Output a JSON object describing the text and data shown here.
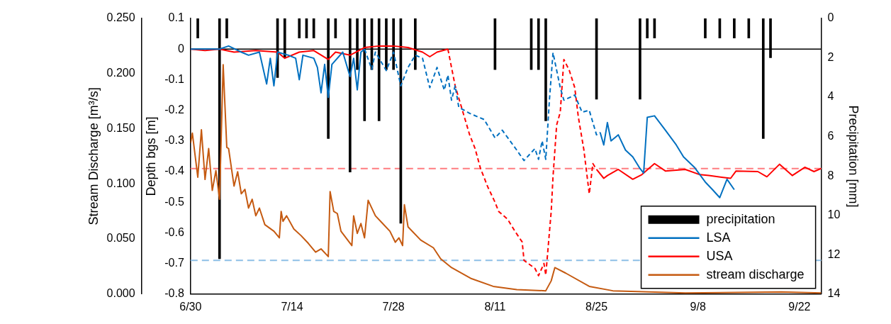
{
  "chart_data": {
    "type": "line",
    "ylabel": "Depth bgs [m]",
    "y2label": "Precipitation [mm]",
    "y3label": "Stream Discharge [m³/s]",
    "xlim": [
      "--06-30",
      "--09-25"
    ],
    "xticks": [
      {
        "value": "--06-30",
        "label": "6/30"
      },
      {
        "value": "--07-14",
        "label": "7/14"
      },
      {
        "value": "--07-28",
        "label": "7/28"
      },
      {
        "value": "--08-11",
        "label": "8/11"
      },
      {
        "value": "--08-25",
        "label": "8/25"
      },
      {
        "value": "--09-08",
        "label": "9/8"
      },
      {
        "value": "--09-22",
        "label": "9/22"
      }
    ],
    "ylim": [
      -0.8,
      0.1
    ],
    "yticks": [
      -0.8,
      -0.7,
      -0.6,
      -0.5,
      -0.4,
      -0.3,
      -0.2,
      -0.1,
      0,
      0.1
    ],
    "y2lim": [
      14,
      0
    ],
    "y2ticks": [
      0,
      2,
      4,
      6,
      8,
      10,
      12,
      14
    ],
    "y3lim": [
      0,
      0.25
    ],
    "y3ticks": [
      {
        "value": 0,
        "label": "0.000"
      },
      {
        "value": 0.05,
        "label": "0.050"
      },
      {
        "value": 0.1,
        "label": "0.100"
      },
      {
        "value": 0.15,
        "label": "0.150"
      },
      {
        "value": 0.2,
        "label": "0.200"
      },
      {
        "value": 0.25,
        "label": "0.250"
      }
    ],
    "legend": "bottom right",
    "marker": "none",
    "ref_lines": [
      {
        "axis": "y",
        "value": 0,
        "color": "#000000",
        "line_style": "solid"
      },
      {
        "axis": "y",
        "value": -0.39,
        "color": "#ff7c80",
        "line_style": "dashed"
      },
      {
        "axis": "y",
        "value": -0.69,
        "color": "#8dbfe6",
        "line_style": "dashed"
      }
    ],
    "series": [
      {
        "name": "precipitation",
        "type": "bar",
        "axis": "y2",
        "color": "#000000",
        "x": [
          "--07-01",
          "--07-04",
          "--07-05",
          "--07-12",
          "--07-13",
          "--07-15",
          "--07-16",
          "--07-17",
          "--07-19",
          "--07-20",
          "--07-22",
          "--07-23",
          "--07-24",
          "--07-25",
          "--07-26",
          "--07-27",
          "--07-28",
          "--07-29",
          "--07-31",
          "--08-11",
          "--08-16",
          "--08-17",
          "--08-18",
          "--08-25",
          "--08-31",
          "--09-01",
          "--09-02",
          "--09-09",
          "--09-11",
          "--09-13",
          "--09-15",
          "--09-17",
          "--09-18"
        ],
        "values": [
          1.0,
          12.2,
          1.0,
          3.0,
          2.0,
          1.0,
          1.0,
          1.0,
          6.1,
          1.0,
          7.8,
          2.6,
          5.2,
          2.6,
          5.2,
          2.6,
          2.6,
          10.4,
          2.6,
          2.6,
          2.6,
          2.6,
          5.2,
          4.1,
          4.1,
          1.0,
          1.0,
          1.0,
          1.0,
          1.0,
          1.0,
          6.1,
          2.0
        ]
      },
      {
        "name": "LSA",
        "color": "#0070c0",
        "line_style": "solid",
        "x": [
          "--06-30",
          "--07-02",
          "--07-04",
          "--07-05T06:00",
          "--07-07",
          "--07-08",
          "--07-09T12:00",
          "--07-10T12:00",
          "--07-11",
          "--07-11T12:00",
          "--07-12",
          "--07-13T12:00",
          "--07-14T12:00",
          "--07-15",
          "--07-15T12:00",
          "--07-17",
          "--07-17T12:00",
          "--07-18",
          "--07-18T12:00",
          "--07-19",
          "--07-19T12:00",
          "--07-21",
          "--07-22",
          "--07-22T12:00",
          "--07-23",
          "--07-23T12:00",
          "--07-24",
          "--08-09",
          "--08-25T12:00",
          "--08-26",
          "--08-26T12:00",
          "--08-27",
          "--08-28",
          "--08-29",
          "--08-30",
          "--08-31",
          "--08-31T12:00",
          "--09-01",
          "--09-02",
          "--09-03T12:00",
          "--09-05",
          "--09-06",
          "--09-07T12:00",
          "--09-09",
          "--09-10",
          "--09-11",
          "--09-12",
          "--09-13"
        ],
        "values": [
          0,
          0,
          0,
          0.01,
          -0.01,
          -0.02,
          -0.01,
          -0.114,
          -0.03,
          -0.12,
          -0.01,
          -0.02,
          -0.03,
          -0.1,
          -0.02,
          -0.03,
          -0.06,
          -0.143,
          -0.05,
          -0.158,
          -0.05,
          -0.01,
          -0.09,
          -0.03,
          -0.133,
          -0.01,
          0,
          null,
          -0.272,
          -0.313,
          -0.24,
          -0.3,
          -0.28,
          -0.33,
          -0.352,
          -0.39,
          -0.405,
          -0.223,
          -0.218,
          -0.265,
          -0.313,
          -0.352,
          -0.386,
          -0.434,
          -0.459,
          -0.485,
          -0.425,
          -0.459
        ]
      },
      {
        "color": "#0070c0",
        "line_style": "dashed",
        "x": [
          "--07-24",
          "--07-25",
          "--07-25T12:00",
          "--07-27",
          "--07-28",
          "--07-29",
          "--07-30",
          "--07-31",
          "--08-01",
          "--08-02",
          "--08-03",
          "--08-04",
          "--08-04T12:00",
          "--08-05",
          "--08-05T12:00",
          "--08-06",
          "--08-07T12:00",
          "--08-09T12:00",
          "--08-11",
          "--08-12",
          "--08-14",
          "--08-15",
          "--08-16T12:00",
          "--08-17",
          "--08-17T12:00",
          "--08-18",
          "--08-18T12:00",
          "--08-19",
          "--08-20",
          "--08-20T12:00",
          "--08-22",
          "--08-23",
          "--08-24",
          "--08-25",
          "--08-25T12:00"
        ],
        "values": [
          0,
          -0.066,
          -0.01,
          -0.07,
          -0.01,
          -0.12,
          -0.06,
          -0.02,
          -0.03,
          -0.126,
          -0.06,
          -0.134,
          -0.085,
          -0.167,
          -0.12,
          -0.19,
          -0.21,
          -0.23,
          -0.29,
          -0.265,
          -0.33,
          -0.364,
          -0.325,
          -0.36,
          -0.3,
          -0.36,
          -0.167,
          -0.012,
          -0.126,
          -0.167,
          -0.15,
          -0.206,
          -0.2,
          -0.28,
          -0.272
        ]
      },
      {
        "name": "USA",
        "color": "#ff0000",
        "line_style": "solid",
        "x": [
          "--06-30",
          "--07-02",
          "--07-04",
          "--07-06",
          "--07-09",
          "--07-12",
          "--07-13",
          "--07-15",
          "--07-17",
          "--07-19",
          "--07-20",
          "--07-22",
          "--07-24",
          "--07-26",
          "--07-28",
          "--07-30",
          "--08-01",
          "--08-02",
          "--08-03",
          "--08-04T12:00",
          "--08-15",
          "--08-25",
          "--08-26",
          "--08-26T12:00",
          "--08-28",
          "--08-30",
          "--08-31T06:00",
          "--09-02",
          "--09-03T12:00",
          "--09-06T06:00",
          "--09-08T06:00",
          "--09-09T12:00",
          "--09-12T12:00",
          "--09-13T06:00",
          "--09-16T06:00",
          "--09-17T12:00",
          "--09-19T06:00",
          "--09-21",
          "--09-22T18:00",
          "--09-24",
          "--09-25"
        ],
        "values": [
          0,
          -0.005,
          0,
          -0.01,
          -0.005,
          -0.01,
          -0.03,
          -0.01,
          -0.005,
          -0.034,
          -0.01,
          -0.02,
          0.005,
          0.01,
          0.01,
          0.005,
          -0.01,
          -0.025,
          -0.01,
          0,
          null,
          -0.393,
          -0.422,
          -0.413,
          -0.393,
          -0.425,
          -0.41,
          -0.374,
          -0.398,
          -0.393,
          -0.41,
          -0.413,
          -0.422,
          -0.398,
          -0.4,
          -0.417,
          -0.376,
          -0.413,
          -0.386,
          -0.4,
          -0.39
        ]
      },
      {
        "color": "#ff0000",
        "line_style": "dashed",
        "x": [
          "--08-04T12:00",
          "--08-04T18:00",
          "--08-05T12:00",
          "--08-06T12:00",
          "--08-07T12:00",
          "--08-08T06:00",
          "--08-09",
          "--08-10",
          "--08-11",
          "--08-11T12:00",
          "--08-12T18:00",
          "--08-13T18:00",
          "--08-14T18:00",
          "--08-15",
          "--08-16T12:00",
          "--08-17",
          "--08-17T18:00",
          "--08-18",
          "--08-18T18:00",
          "--08-19",
          "--08-19T12:00",
          "--08-20",
          "--08-20T12:00",
          "--08-21T06:00",
          "--08-22",
          "--08-22T12:00",
          "--08-23T06:00",
          "--08-24",
          "--08-24T12:00",
          "--08-25"
        ],
        "values": [
          0,
          -0.03,
          -0.12,
          -0.2,
          -0.28,
          -0.325,
          -0.39,
          -0.45,
          -0.5,
          -0.53,
          -0.556,
          -0.595,
          -0.63,
          -0.69,
          -0.716,
          -0.74,
          -0.7,
          -0.738,
          -0.53,
          -0.417,
          -0.248,
          -0.206,
          -0.034,
          -0.07,
          -0.126,
          -0.223,
          -0.328,
          -0.473,
          -0.374,
          -0.393
        ]
      },
      {
        "name": "stream discharge",
        "color": "#c55a11",
        "line_style": "solid",
        "axis": "y3",
        "x": [
          "--06-30",
          "--06-30T06:00",
          "--07-01",
          "--07-01T12:00",
          "--07-02",
          "--07-02T12:00",
          "--07-03",
          "--07-03T12:00",
          "--07-04",
          "--07-04T12:00",
          "--07-05",
          "--07-05T06:00",
          "--07-06",
          "--07-06T12:00",
          "--07-07",
          "--07-07T12:00",
          "--07-08",
          "--07-08T12:00",
          "--07-09",
          "--07-09T12:00",
          "--07-10T06:00",
          "--07-11T12:00",
          "--07-12T06:00",
          "--07-12T12:00",
          "--07-12T18:00",
          "--07-13T06:00",
          "--07-14T06:00",
          "--07-15T06:00",
          "--07-16T06:00",
          "--07-17T06:00",
          "--07-18",
          "--07-19",
          "--07-19T06:00",
          "--07-19T18:00",
          "--07-20T06:00",
          "--07-20T18:00",
          "--07-22T06:00",
          "--07-22T12:00",
          "--07-23",
          "--07-23T12:00",
          "--07-24",
          "--07-24T12:00",
          "--07-25T12:00",
          "--07-26T12:00",
          "--07-27T12:00",
          "--07-28T06:00",
          "--07-28T18:00",
          "--07-29T06:00",
          "--07-29T12:00",
          "--07-30",
          "--07-31T18:00",
          "--08-02T12:00",
          "--08-03T12:00",
          "--08-05",
          "--08-07T18:00",
          "--08-10T18:00",
          "--08-14",
          "--08-18",
          "--08-18T18:00",
          "--08-19T06:00",
          "--08-20T18:00",
          "--08-24",
          "--08-27T06:00",
          "--09-01T06:00",
          "--09-06T06:00",
          "--09-19T12:00",
          "--09-25"
        ],
        "values": [
          0.137,
          0.146,
          0.106,
          0.149,
          0.104,
          0.132,
          0.094,
          0.112,
          0.086,
          0.208,
          0.133,
          0.132,
          0.098,
          0.111,
          0.091,
          0.095,
          0.078,
          0.086,
          0.071,
          0.078,
          0.063,
          0.057,
          0.051,
          0.075,
          0.066,
          0.071,
          0.059,
          0.053,
          0.046,
          0.038,
          0.041,
          0.034,
          0.093,
          0.075,
          0.073,
          0.057,
          0.044,
          0.071,
          0.055,
          0.064,
          0.051,
          0.085,
          0.071,
          0.064,
          0.057,
          0.047,
          0.051,
          0.044,
          0.081,
          0.061,
          0.049,
          0.042,
          0.032,
          0.024,
          0.014,
          0.007,
          0.004,
          0.003,
          0.012,
          0.024,
          0.019,
          0.007,
          0.003,
          0.002,
          0.001,
          0.002,
          0.001
        ]
      }
    ]
  }
}
